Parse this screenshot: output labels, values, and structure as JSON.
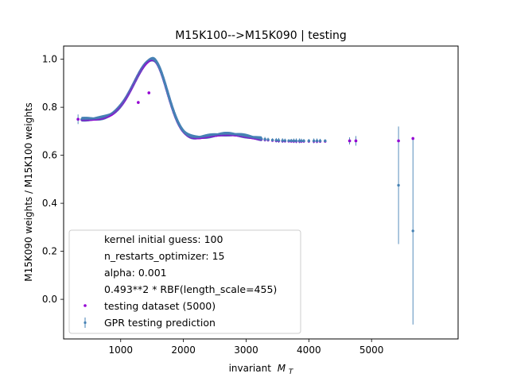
{
  "chart_data": {
    "type": "scatter",
    "title": "M15K100-->M15K090 | testing",
    "xlabel": "invariant",
    "xlabel_math": "M",
    "xlabel_sub": "T",
    "ylabel": "M15K090 weights / M15K100 weights",
    "xlim": [
      90,
      6380
    ],
    "ylim": [
      -0.165,
      1.055
    ],
    "xticks": [
      1000,
      2000,
      3000,
      4000,
      5000
    ],
    "yticks": [
      0.0,
      0.2,
      0.4,
      0.6,
      0.8,
      1.0
    ],
    "xtick_labels": [
      "1000",
      "2000",
      "3000",
      "4000",
      "5000"
    ],
    "ytick_labels": [
      "0.0",
      "0.2",
      "0.4",
      "0.6",
      "0.8",
      "1.0"
    ],
    "legend_position": "lower-left",
    "legend_text": [
      "kernel initial guess: 100",
      "n_restarts_optimizer: 15",
      "alpha: 0.001",
      "0.493**2 * RBF(length_scale=455)"
    ],
    "series": [
      {
        "name": "testing dataset (5000)",
        "color": "#9400d3",
        "marker": "point",
        "curve_x_range": [
          300,
          4300
        ],
        "outliers": [
          {
            "x": 320,
            "y": 0.75
          },
          {
            "x": 1280,
            "y": 0.82
          },
          {
            "x": 1450,
            "y": 0.86
          },
          {
            "x": 4650,
            "y": 0.66
          },
          {
            "x": 4750,
            "y": 0.66
          },
          {
            "x": 5430,
            "y": 0.66
          },
          {
            "x": 5660,
            "y": 0.67
          }
        ]
      },
      {
        "name": "GPR testing prediction",
        "color": "#4682b4",
        "marker": "errorbar",
        "curve_x_range": [
          300,
          4300
        ],
        "isolated": [
          {
            "x": 320,
            "y": 0.75,
            "err": 0.02
          },
          {
            "x": 4650,
            "y": 0.66,
            "err": 0.015
          },
          {
            "x": 4750,
            "y": 0.66,
            "err": 0.02
          },
          {
            "x": 5430,
            "y": 0.475,
            "err": 0.245
          },
          {
            "x": 5660,
            "y": 0.285,
            "err": 0.39
          }
        ]
      }
    ],
    "curve_model": {
      "baseline": 0.66,
      "peak_x": 1510,
      "peak_y": 1.0,
      "left_width": 420,
      "right_width": 330,
      "left_tail": 0.75
    },
    "sparse_x": [
      3300,
      3350,
      3420,
      3480,
      3520,
      3580,
      3620,
      3680,
      3720,
      3760,
      3800,
      3850,
      3880,
      3920,
      4000,
      4080,
      4130,
      4180,
      4260
    ]
  }
}
